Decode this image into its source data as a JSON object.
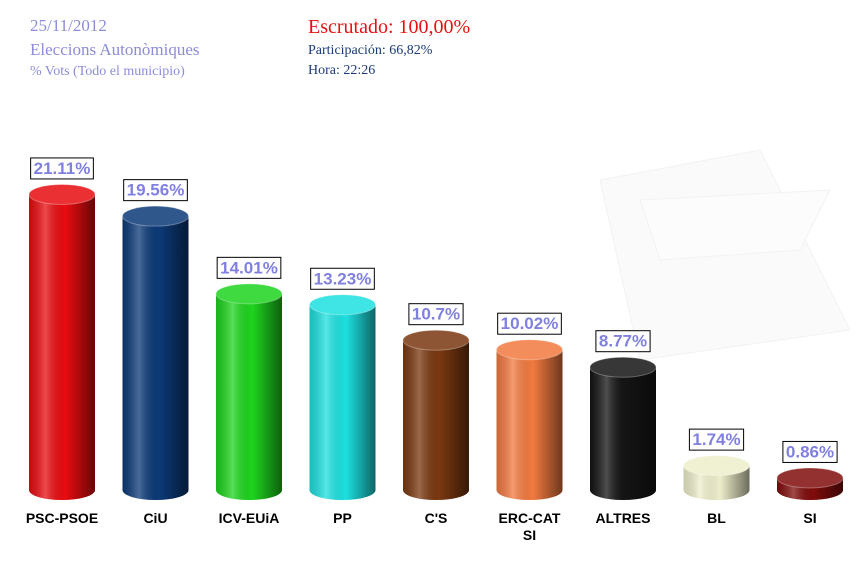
{
  "chart_data": {
    "type": "bar",
    "date": "25/11/2012",
    "title": "Eleccions Autonòmiques",
    "subtitle": "% Vots (Todo el municipio)",
    "annotations": [
      "Escrutado: 100,00%",
      "Participación: 66,82%",
      "Hora: 22:26"
    ],
    "categories": [
      "PSC-PSOE",
      "CiU",
      "ICV-EUiA",
      "PP",
      "C'S",
      "ERC-CAT SI",
      "ALTRES",
      "BL",
      "SI"
    ],
    "values": [
      21.11,
      19.56,
      14.01,
      13.23,
      10.7,
      10.02,
      8.77,
      1.74,
      0.86
    ],
    "value_labels": [
      "21.11%",
      "19.56%",
      "14.01%",
      "13.23%",
      "10.7%",
      "10.02%",
      "8.77%",
      "1.74%",
      "0.86%"
    ],
    "colors": [
      "#e80c10",
      "#0c3a78",
      "#1ed41e",
      "#1ee0e0",
      "#7a3810",
      "#f27a40",
      "#141414",
      "#eeeecc",
      "#800c0c"
    ]
  }
}
